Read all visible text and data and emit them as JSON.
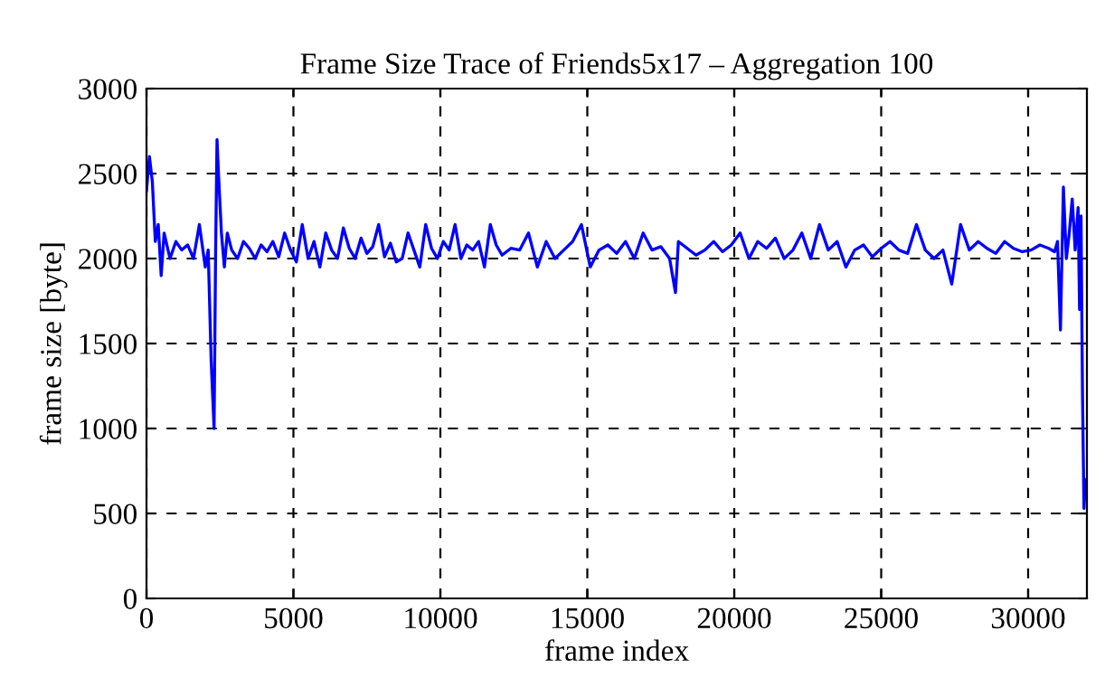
{
  "chart_data": {
    "type": "line",
    "title": "Frame Size Trace of Friends5x17 – Aggregation 100",
    "xlabel": "frame index",
    "ylabel": "frame size [byte]",
    "xlim": [
      0,
      32000
    ],
    "ylim": [
      0,
      3000
    ],
    "xticks": [
      0,
      5000,
      10000,
      15000,
      20000,
      25000,
      30000
    ],
    "yticks": [
      0,
      500,
      1000,
      1500,
      2000,
      2500,
      3000
    ],
    "grid": true,
    "line_style": "solid",
    "marker": "none",
    "series": [
      {
        "color": "#0000ff",
        "x": [
          0,
          100,
          200,
          300,
          400,
          500,
          600,
          800,
          1000,
          1200,
          1400,
          1600,
          1800,
          2000,
          2100,
          2200,
          2300,
          2350,
          2400,
          2450,
          2550,
          2650,
          2750,
          2900,
          3100,
          3300,
          3500,
          3700,
          3900,
          4100,
          4300,
          4500,
          4700,
          4900,
          5100,
          5300,
          5500,
          5700,
          5900,
          6100,
          6300,
          6500,
          6700,
          6900,
          7100,
          7300,
          7500,
          7700,
          7900,
          8100,
          8300,
          8500,
          8700,
          8900,
          9100,
          9300,
          9500,
          9700,
          9900,
          10100,
          10300,
          10500,
          10700,
          10900,
          11100,
          11300,
          11500,
          11700,
          11900,
          12100,
          12400,
          12700,
          13000,
          13300,
          13600,
          13900,
          14200,
          14500,
          14800,
          15100,
          15400,
          15700,
          16000,
          16300,
          16600,
          16900,
          17200,
          17500,
          17800,
          18000,
          18100,
          18400,
          18700,
          19000,
          19300,
          19600,
          19900,
          20200,
          20500,
          20800,
          21100,
          21400,
          21700,
          22000,
          22300,
          22600,
          22900,
          23200,
          23500,
          23800,
          24100,
          24400,
          24700,
          25000,
          25300,
          25600,
          25900,
          26200,
          26500,
          26800,
          27100,
          27400,
          27700,
          28000,
          28300,
          28600,
          28900,
          29200,
          29500,
          29800,
          30100,
          30400,
          30700,
          30900,
          31000,
          31100,
          31200,
          31300,
          31400,
          31500,
          31600,
          31700,
          31750,
          31800,
          31850,
          31900,
          31950
        ],
        "values": [
          2400,
          2600,
          2450,
          2100,
          2200,
          1900,
          2150,
          2000,
          2100,
          2050,
          2080,
          2000,
          2200,
          1950,
          2050,
          1400,
          1000,
          2000,
          2700,
          2500,
          2150,
          1950,
          2150,
          2050,
          2000,
          2100,
          2060,
          2000,
          2080,
          2040,
          2100,
          2010,
          2150,
          2050,
          1980,
          2200,
          2000,
          2100,
          1950,
          2150,
          2050,
          2000,
          2180,
          2060,
          2000,
          2120,
          2030,
          2070,
          2200,
          2010,
          2090,
          1980,
          2000,
          2150,
          2050,
          1950,
          2200,
          2060,
          2000,
          2100,
          2050,
          2200,
          2000,
          2080,
          2050,
          2100,
          1950,
          2200,
          2080,
          2020,
          2060,
          2050,
          2150,
          1950,
          2100,
          2000,
          2050,
          2100,
          2200,
          1950,
          2050,
          2080,
          2030,
          2100,
          2000,
          2150,
          2050,
          2070,
          2000,
          1800,
          2100,
          2060,
          2020,
          2050,
          2100,
          2040,
          2080,
          2150,
          2000,
          2100,
          2060,
          2120,
          2000,
          2050,
          2150,
          2000,
          2200,
          2050,
          2100,
          1950,
          2050,
          2080,
          2010,
          2060,
          2100,
          2050,
          2030,
          2200,
          2050,
          2000,
          2050,
          1850,
          2200,
          2050,
          2100,
          2060,
          2030,
          2100,
          2060,
          2040,
          2050,
          2080,
          2060,
          2040,
          2100,
          1580,
          2420,
          2000,
          2150,
          2350,
          2050,
          2300,
          1700,
          2250,
          1200,
          530,
          700
        ]
      }
    ]
  }
}
